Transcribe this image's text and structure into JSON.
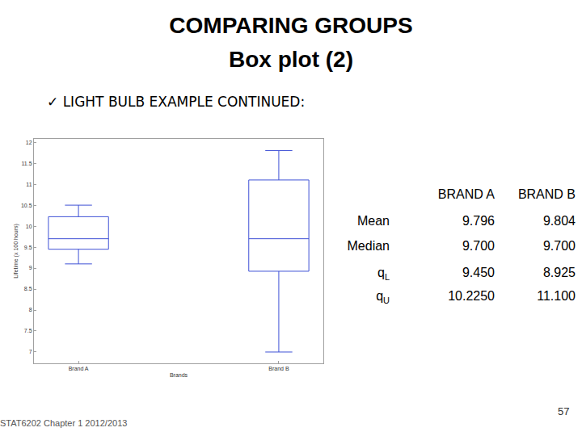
{
  "header": {
    "title": "COMPARING GROUPS",
    "subtitle": "Box plot (2)",
    "bullet": "✓ LIGHT BULB EXAMPLE CONTINUED:"
  },
  "chart_data": {
    "type": "box",
    "xlabel": "Brands",
    "ylabel": "Lifetime (x 100 hours)",
    "categories": [
      "Brand A",
      "Brand B"
    ],
    "lower_whisker": [
      9.1,
      7.0
    ],
    "q1": [
      9.45,
      8.925
    ],
    "median": [
      9.7,
      9.7
    ],
    "q3": [
      10.225,
      11.1
    ],
    "upper_whisker": [
      10.5,
      11.8
    ],
    "color": "#3f51d6",
    "grid": false,
    "ylim": [
      6.73,
      12.08
    ],
    "yticks": [
      7,
      7.5,
      8,
      8.5,
      9,
      9.5,
      10,
      10.5,
      11,
      11.5,
      12
    ]
  },
  "table": {
    "columns": [
      "BRAND A",
      "BRAND B"
    ],
    "rows": [
      {
        "label": "Mean",
        "values": [
          "9.796",
          "9.804"
        ]
      },
      {
        "label": "Median",
        "values": [
          "9.700",
          "9.700"
        ]
      },
      {
        "label": "q",
        "label_sub": "L",
        "values": [
          "9.450",
          "8.925"
        ]
      },
      {
        "label": "q",
        "label_sub": "U",
        "values": [
          "10.2250",
          "11.100"
        ]
      }
    ]
  },
  "footer": {
    "course": "STAT6202 Chapter 1 2012/2013",
    "page": "57"
  }
}
